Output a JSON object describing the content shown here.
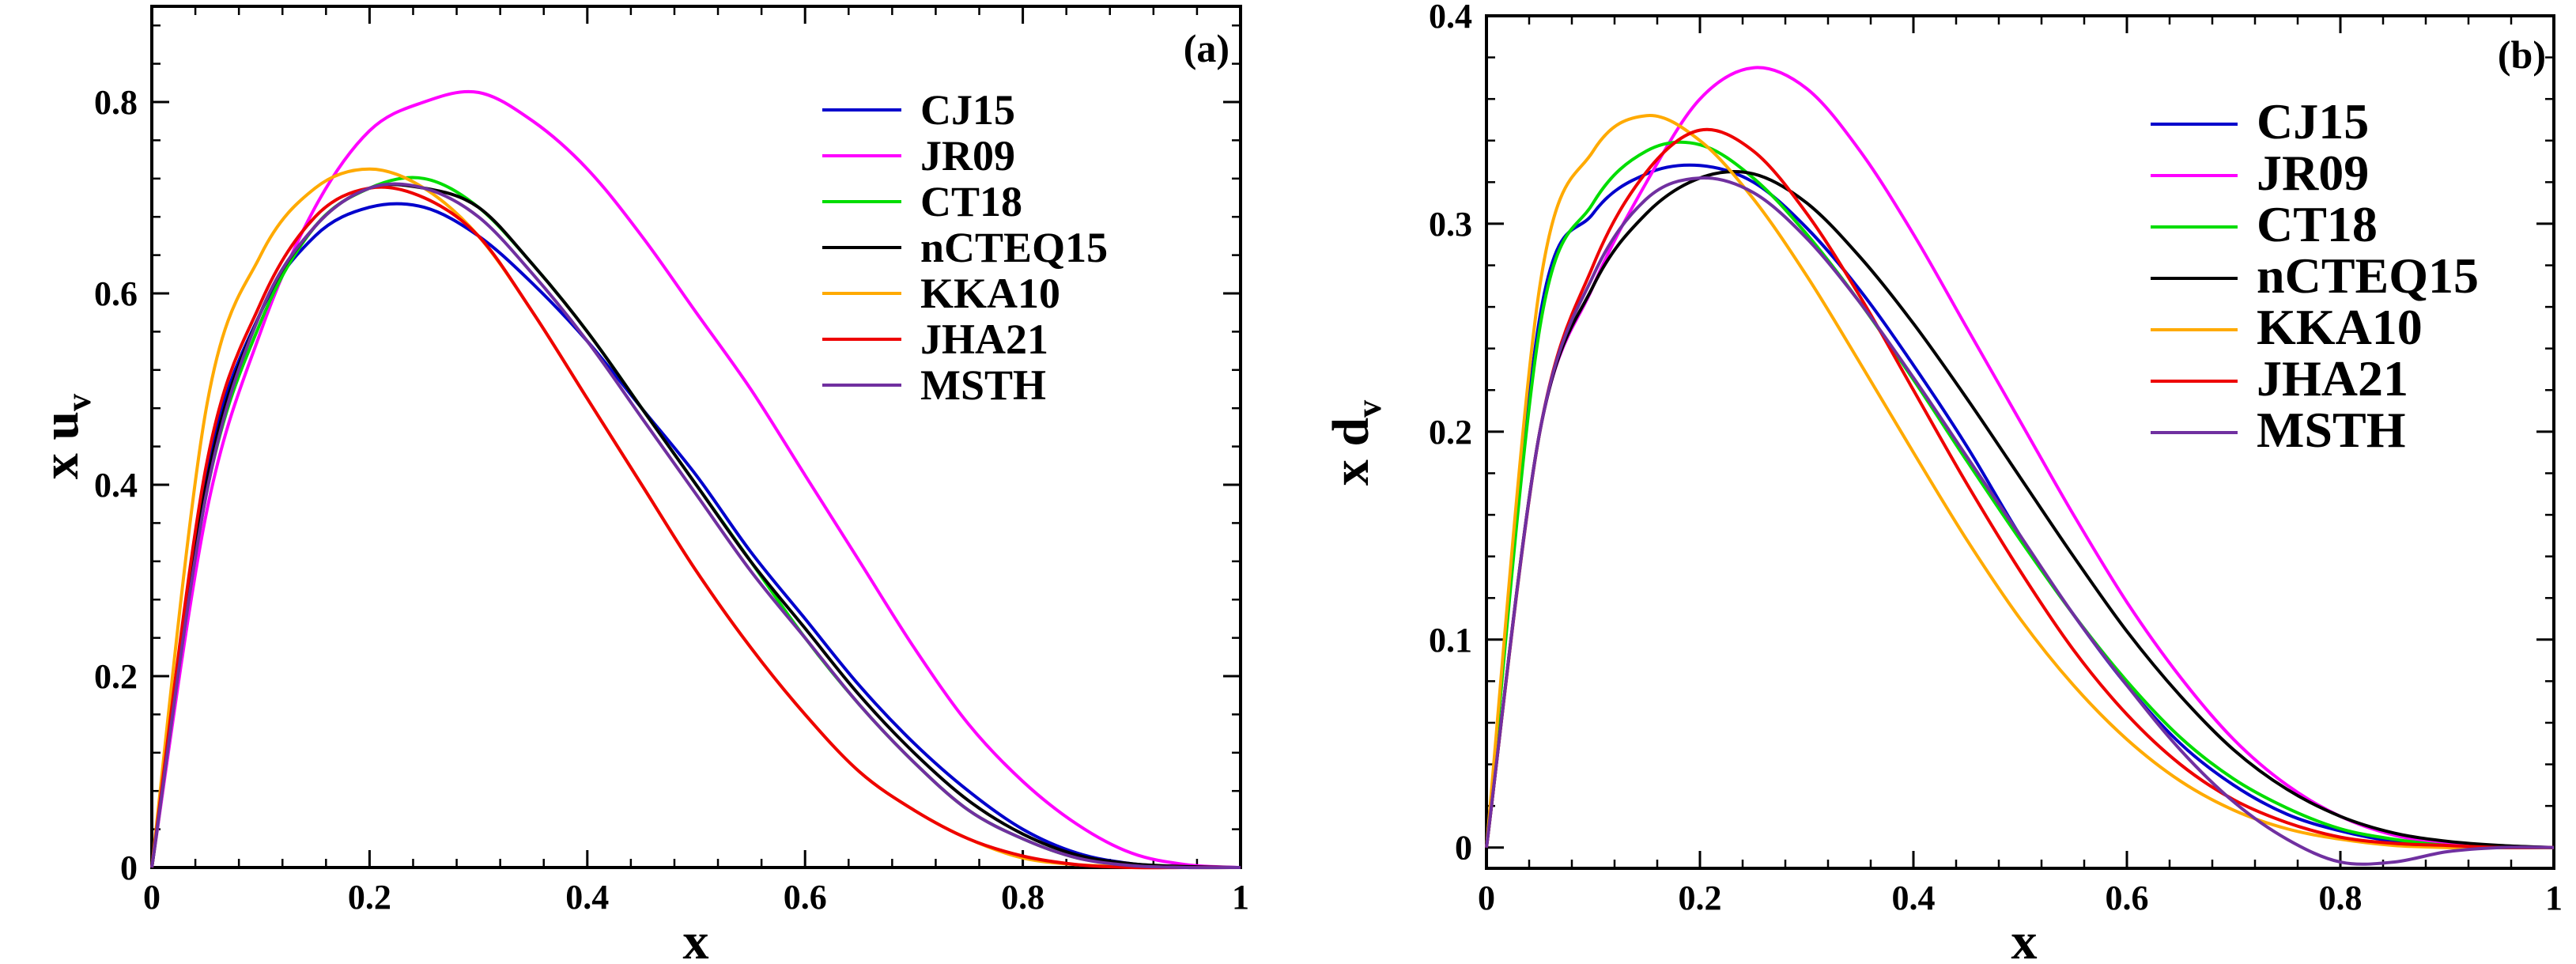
{
  "chart_data": [
    {
      "type": "line",
      "panel_tag": "(a)",
      "xlabel": "x",
      "ylabel": {
        "main": "x u",
        "sub": "v"
      },
      "xlim": [
        0,
        1
      ],
      "ylim": [
        0,
        0.9
      ],
      "xticks": [
        0,
        0.2,
        0.4,
        0.6,
        0.8,
        1
      ],
      "xtick_labels": [
        "0",
        "0.2",
        "0.4",
        "0.6",
        "0.8",
        "1"
      ],
      "yticks": [
        0,
        0.2,
        0.4,
        0.6,
        0.8
      ],
      "ytick_labels": [
        "0",
        "0.2",
        "0.4",
        "0.6",
        "0.8"
      ],
      "legend_position": "top-right",
      "x": [
        0,
        0.05,
        0.1,
        0.15,
        0.2,
        0.25,
        0.3,
        0.35,
        0.4,
        0.45,
        0.5,
        0.55,
        0.6,
        0.65,
        0.7,
        0.75,
        0.8,
        0.85,
        0.9,
        0.95,
        1.0
      ],
      "series": [
        {
          "name": "CJ15",
          "color": "#0000cc",
          "values": [
            0,
            0.41,
            0.58,
            0.66,
            0.69,
            0.69,
            0.66,
            0.61,
            0.55,
            0.48,
            0.41,
            0.33,
            0.26,
            0.19,
            0.13,
            0.08,
            0.04,
            0.015,
            0.004,
            0.001,
            0
          ]
        },
        {
          "name": "JR09",
          "color": "#ff00ff",
          "values": [
            0,
            0.37,
            0.56,
            0.69,
            0.77,
            0.8,
            0.81,
            0.78,
            0.73,
            0.66,
            0.58,
            0.5,
            0.41,
            0.32,
            0.23,
            0.15,
            0.09,
            0.045,
            0.015,
            0.003,
            0
          ]
        },
        {
          "name": "CT18",
          "color": "#00dd00",
          "values": [
            0,
            0.39,
            0.57,
            0.67,
            0.71,
            0.72,
            0.69,
            0.63,
            0.56,
            0.48,
            0.4,
            0.32,
            0.24,
            0.17,
            0.11,
            0.06,
            0.03,
            0.01,
            0.003,
            0.0005,
            0
          ]
        },
        {
          "name": "nCTEQ15",
          "color": "#000000",
          "values": [
            0,
            0.4,
            0.58,
            0.67,
            0.71,
            0.71,
            0.69,
            0.63,
            0.56,
            0.48,
            0.4,
            0.32,
            0.25,
            0.18,
            0.12,
            0.07,
            0.035,
            0.013,
            0.004,
            0.001,
            0
          ]
        },
        {
          "name": "KKA10",
          "color": "#ffaa00",
          "values": [
            0,
            0.48,
            0.64,
            0.71,
            0.73,
            0.71,
            0.66,
            0.58,
            0.49,
            0.4,
            0.31,
            0.23,
            0.16,
            0.1,
            0.06,
            0.03,
            0.01,
            0.003,
            0.001,
            0,
            0
          ]
        },
        {
          "name": "JHA21",
          "color": "#ee0000",
          "values": [
            0,
            0.42,
            0.59,
            0.68,
            0.71,
            0.7,
            0.66,
            0.58,
            0.49,
            0.4,
            0.31,
            0.23,
            0.16,
            0.1,
            0.06,
            0.03,
            0.012,
            0.003,
            0,
            0,
            0
          ]
        },
        {
          "name": "MSTH",
          "color": "#7030a0",
          "values": [
            0,
            0.39,
            0.58,
            0.67,
            0.71,
            0.71,
            0.68,
            0.62,
            0.55,
            0.47,
            0.39,
            0.31,
            0.24,
            0.17,
            0.11,
            0.06,
            0.03,
            0.01,
            0.002,
            0,
            0
          ]
        }
      ]
    },
    {
      "type": "line",
      "panel_tag": "(b)",
      "xlabel": "x",
      "ylabel": {
        "main": "x d",
        "sub": "v"
      },
      "xlim": [
        0,
        1
      ],
      "ylim": [
        -0.01,
        0.4
      ],
      "xticks": [
        0,
        0.2,
        0.4,
        0.6,
        0.8,
        1
      ],
      "xtick_labels": [
        "0",
        "0.2",
        "0.4",
        "0.6",
        "0.8",
        "1"
      ],
      "yticks": [
        0,
        0.1,
        0.2,
        0.3,
        0.4
      ],
      "ytick_labels": [
        "0",
        "0.1",
        "0.2",
        "0.3",
        "0.4"
      ],
      "legend_position": "top-right",
      "x": [
        0,
        0.05,
        0.1,
        0.15,
        0.2,
        0.25,
        0.3,
        0.35,
        0.4,
        0.45,
        0.5,
        0.55,
        0.6,
        0.65,
        0.7,
        0.75,
        0.8,
        0.85,
        0.9,
        0.95,
        1.0
      ],
      "series": [
        {
          "name": "CJ15",
          "color": "#0000cc",
          "values": [
            0,
            0.255,
            0.305,
            0.324,
            0.328,
            0.32,
            0.298,
            0.268,
            0.232,
            0.193,
            0.15,
            0.112,
            0.078,
            0.05,
            0.03,
            0.016,
            0.008,
            0.003,
            0.001,
            0,
            0
          ]
        },
        {
          "name": "JR09",
          "color": "#ff00ff",
          "values": [
            0,
            0.2,
            0.27,
            0.32,
            0.36,
            0.375,
            0.365,
            0.335,
            0.295,
            0.25,
            0.205,
            0.16,
            0.118,
            0.082,
            0.052,
            0.03,
            0.015,
            0.006,
            0.002,
            0.0005,
            0
          ]
        },
        {
          "name": "CT18",
          "color": "#00dd00",
          "values": [
            0,
            0.25,
            0.31,
            0.335,
            0.338,
            0.322,
            0.295,
            0.262,
            0.225,
            0.186,
            0.148,
            0.112,
            0.08,
            0.053,
            0.033,
            0.019,
            0.009,
            0.004,
            0.001,
            0,
            0
          ]
        },
        {
          "name": "nCTEQ15",
          "color": "#000000",
          "values": [
            0,
            0.2,
            0.27,
            0.305,
            0.322,
            0.324,
            0.31,
            0.284,
            0.252,
            0.216,
            0.178,
            0.14,
            0.104,
            0.073,
            0.047,
            0.028,
            0.015,
            0.007,
            0.003,
            0.001,
            0
          ]
        },
        {
          "name": "KKA10",
          "color": "#ffaa00",
          "values": [
            0,
            0.27,
            0.335,
            0.352,
            0.34,
            0.312,
            0.275,
            0.233,
            0.19,
            0.148,
            0.11,
            0.078,
            0.052,
            0.032,
            0.018,
            0.009,
            0.004,
            0.001,
            0,
            0,
            0
          ]
        },
        {
          "name": "JHA21",
          "color": "#ee0000",
          "values": [
            0,
            0.2,
            0.28,
            0.325,
            0.345,
            0.335,
            0.305,
            0.265,
            0.22,
            0.175,
            0.133,
            0.095,
            0.064,
            0.04,
            0.023,
            0.012,
            0.005,
            0.002,
            0.001,
            0,
            0
          ]
        },
        {
          "name": "MSTH",
          "color": "#7030a0",
          "values": [
            0,
            0.2,
            0.275,
            0.312,
            0.322,
            0.315,
            0.293,
            0.262,
            0.226,
            0.188,
            0.15,
            0.112,
            0.078,
            0.047,
            0.022,
            0.004,
            -0.007,
            -0.007,
            -0.002,
            0,
            0
          ]
        }
      ]
    }
  ]
}
